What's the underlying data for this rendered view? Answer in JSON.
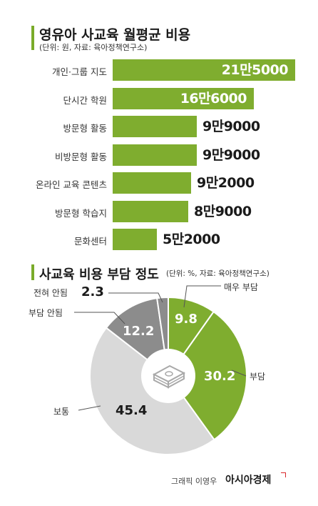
{
  "colors": {
    "accent": "#7fad2f",
    "slice_much": "#7fad2f",
    "slice_burden": "#7fad2f",
    "slice_normal": "#d9d9d9",
    "slice_none": "#8c8c8c",
    "slice_not_at_all": "#8c8c8c",
    "hole": "#ffffff",
    "icon": "#b5b5b5"
  },
  "chart_data": [
    {
      "type": "bar",
      "orientation": "horizontal",
      "title": "영유아 사교육 월평균 비용",
      "subtitle": "(단위: 원, 자료: 육아정책연구소)",
      "categories": [
        "개인·그룹 지도",
        "단시간 학원",
        "방문형 활동",
        "비방문형 활동",
        "온라인 교육 콘텐츠",
        "방문형 학습지",
        "문화센터"
      ],
      "values": [
        215000,
        166000,
        99000,
        99000,
        92000,
        89000,
        52000
      ],
      "value_labels": [
        "21만5000",
        "16만6000",
        "9만9000",
        "9만9000",
        "9만2000",
        "8만9000",
        "5만2000"
      ],
      "xlim": [
        0,
        215000
      ]
    },
    {
      "type": "pie",
      "title": "사교육 비용 부담 정도",
      "subtitle": "(단위: %, 자료: 육아정책연구소)",
      "slices": [
        {
          "key": "much",
          "label": "매우 부담",
          "value": 9.8,
          "display": "9.8"
        },
        {
          "key": "burden",
          "label": "부담",
          "value": 30.2,
          "display": "30.2"
        },
        {
          "key": "normal",
          "label": "보통",
          "value": 45.4,
          "display": "45.4"
        },
        {
          "key": "none",
          "label": "부담 안됨",
          "value": 12.2,
          "display": "12.2"
        },
        {
          "key": "not_at_all",
          "label": "전혀 안됨",
          "value": 2.3,
          "display": "2.3"
        }
      ],
      "icon": "money-stack-icon"
    }
  ],
  "footer": {
    "credit": "그래픽 이영우",
    "brand": "아시아경제"
  }
}
